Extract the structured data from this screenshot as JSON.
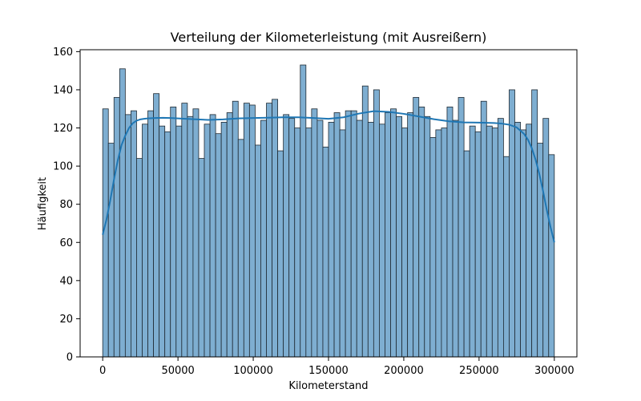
{
  "chart_data": {
    "type": "bar",
    "title": "Verteilung der Kilometerleistung (mit Ausreißern)",
    "xlabel": "Kilometerstand",
    "ylabel": "Häufigkeit",
    "xlim": [
      -15000,
      315000
    ],
    "ylim": [
      0,
      161
    ],
    "x_ticks": [
      0,
      50000,
      100000,
      150000,
      200000,
      250000,
      300000
    ],
    "x_tick_labels": [
      "0",
      "50000",
      "100000",
      "150000",
      "200000",
      "250000",
      "300000"
    ],
    "y_ticks": [
      0,
      20,
      40,
      60,
      80,
      100,
      120,
      140,
      160
    ],
    "y_tick_labels": [
      "0",
      "20",
      "40",
      "60",
      "80",
      "100",
      "120",
      "140",
      "160"
    ],
    "bin_start": 0,
    "bin_end": 300000,
    "bin_width": 3750,
    "counts": [
      130,
      112,
      136,
      151,
      127,
      129,
      104,
      122,
      129,
      138,
      121,
      118,
      131,
      121,
      133,
      126,
      130,
      104,
      122,
      127,
      117,
      123,
      128,
      134,
      114,
      133,
      132,
      111,
      124,
      133,
      135,
      108,
      127,
      125,
      120,
      153,
      120,
      130,
      124,
      110,
      123,
      128,
      119,
      129,
      129,
      124,
      142,
      123,
      140,
      122,
      128,
      130,
      126,
      120,
      128,
      136,
      131,
      126,
      115,
      119,
      120,
      131,
      124,
      136,
      108,
      121,
      118,
      134,
      121,
      120,
      125,
      105,
      140,
      123,
      119,
      122,
      140,
      112,
      125,
      106
    ],
    "kde": {
      "x": [
        0,
        2500,
        5000,
        7500,
        10000,
        12500,
        15000,
        17500,
        20000,
        22500,
        25000,
        27500,
        30000,
        35000,
        40000,
        45000,
        50000,
        60000,
        70000,
        80000,
        90000,
        100000,
        110000,
        120000,
        130000,
        140000,
        150000,
        160000,
        170000,
        180000,
        190000,
        200000,
        210000,
        220000,
        230000,
        240000,
        250000,
        260000,
        265000,
        270000,
        275000,
        280000,
        282500,
        285000,
        287500,
        290000,
        292500,
        295000,
        297500,
        300000
      ],
      "y": [
        64,
        72,
        82,
        93,
        103,
        111,
        116,
        120,
        122.5,
        123.8,
        124.5,
        124.8,
        125,
        125.2,
        125.3,
        125.2,
        125,
        124.6,
        124.2,
        124.5,
        125,
        125.2,
        125.4,
        125.6,
        125.6,
        125.2,
        124.8,
        125.6,
        127.5,
        128.8,
        128.4,
        127.4,
        126,
        124.6,
        123.5,
        122.9,
        122.8,
        122.6,
        122.3,
        121.7,
        120.3,
        116.8,
        113.8,
        109.5,
        103.5,
        96,
        87,
        77,
        68,
        60
      ]
    },
    "colors": {
      "bar_fill": "#7eaed1",
      "bar_edge": "#1f2a33",
      "kde_line": "#1f77b4"
    },
    "grid": false,
    "legend": "none"
  }
}
